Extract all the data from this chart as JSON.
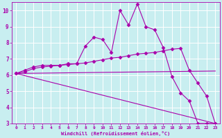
{
  "xlabel": "Windchill (Refroidissement éolien,°C)",
  "background_color": "#c8eef0",
  "grid_color": "#ffffff",
  "line_color": "#aa00aa",
  "xlim": [
    -0.5,
    23.5
  ],
  "ylim": [
    3,
    10.5
  ],
  "yticks": [
    3,
    4,
    5,
    6,
    7,
    8,
    9,
    10
  ],
  "xticks": [
    0,
    1,
    2,
    3,
    4,
    5,
    6,
    7,
    8,
    9,
    10,
    11,
    12,
    13,
    14,
    15,
    16,
    17,
    18,
    19,
    20,
    21,
    22,
    23
  ],
  "series": [
    {
      "x": [
        0,
        1,
        2,
        3,
        4,
        5,
        6,
        7,
        8,
        9,
        10,
        11,
        12,
        13,
        14,
        15,
        16,
        17,
        18,
        19,
        20,
        21,
        22,
        23
      ],
      "y": [
        6.1,
        6.3,
        6.5,
        6.6,
        6.6,
        6.6,
        6.7,
        6.7,
        7.8,
        8.35,
        8.2,
        7.4,
        10.0,
        9.1,
        10.4,
        9.0,
        8.8,
        7.7,
        5.9,
        4.9,
        4.4,
        3.0,
        3.0,
        3.0
      ],
      "marker": "D",
      "markersize": 2.5,
      "linewidth": 0.8
    },
    {
      "x": [
        0,
        1,
        2,
        3,
        4,
        5,
        6,
        7,
        8,
        9,
        10,
        11,
        12,
        13,
        14,
        15,
        16,
        17,
        18,
        19,
        20,
        21,
        22,
        23
      ],
      "y": [
        6.1,
        6.2,
        6.4,
        6.5,
        6.55,
        6.6,
        6.65,
        6.7,
        6.75,
        6.85,
        6.95,
        7.05,
        7.1,
        7.2,
        7.3,
        7.35,
        7.4,
        7.5,
        7.6,
        7.65,
        6.3,
        5.5,
        4.7,
        3.0
      ],
      "marker": "D",
      "markersize": 2.5,
      "linewidth": 0.8
    },
    {
      "x": [
        0,
        23
      ],
      "y": [
        6.1,
        6.25
      ],
      "marker": null,
      "markersize": 0,
      "linewidth": 0.8
    },
    {
      "x": [
        0,
        23
      ],
      "y": [
        6.1,
        3.0
      ],
      "marker": null,
      "markersize": 0,
      "linewidth": 0.8
    }
  ]
}
